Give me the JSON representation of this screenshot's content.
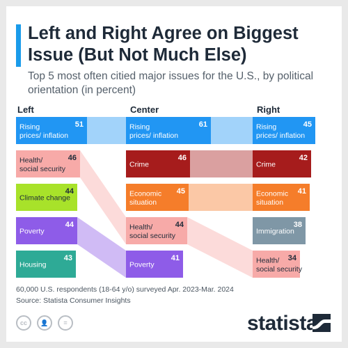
{
  "title": "Left and Right Agree on Biggest Issue (But Not Much Else)",
  "subtitle": "Top 5 most often citied major issues for the U.S., by political orientation (in percent)",
  "columns": [
    "Left",
    "Center",
    "Right"
  ],
  "chart_data": {
    "type": "bar",
    "title": "Left and Right Agree on Biggest Issue (But Not Much Else)",
    "subtitle": "Top 5 most often citied major issues for the U.S., by political orientation (in percent)",
    "xlim": [
      0,
      51
    ],
    "groups": [
      {
        "name": "Left",
        "items": [
          {
            "label": "Rising prices/ inflation",
            "value": 51
          },
          {
            "label": "Health/ social security",
            "value": 46
          },
          {
            "label": "Climate change",
            "value": 44
          },
          {
            "label": "Poverty",
            "value": 44
          },
          {
            "label": "Housing",
            "value": 43
          }
        ]
      },
      {
        "name": "Center",
        "items": [
          {
            "label": "Rising prices/ inflation",
            "value": 61
          },
          {
            "label": "Crime",
            "value": 46
          },
          {
            "label": "Economic situation",
            "value": 45
          },
          {
            "label": "Health/ social security",
            "value": 44
          },
          {
            "label": "Poverty",
            "value": 41
          }
        ]
      },
      {
        "name": "Right",
        "items": [
          {
            "label": "Rising prices/ inflation",
            "value": 45
          },
          {
            "label": "Crime",
            "value": 42
          },
          {
            "label": "Economic situation",
            "value": 41
          },
          {
            "label": "Immigration",
            "value": 38
          },
          {
            "label": "Health/ social security",
            "value": 34
          }
        ]
      }
    ],
    "issue_colors": {
      "Rising prices/ inflation": "#2196f3",
      "Health/ social security": "#f7aaa8",
      "Climate change": "#a8e22a",
      "Poverty": "#8e5ce8",
      "Housing": "#2eaa96",
      "Crime": "#a61c1c",
      "Economic situation": "#f57d2a",
      "Immigration": "#7f97a6"
    },
    "dark_text_issues": [
      "Health/ social security",
      "Climate change"
    ]
  },
  "footer": {
    "note": "60,000 U.S. respondents (18-64 y/o) surveyed Apr. 2023-Mar. 2024",
    "source": "Source: Statista Consumer Insights"
  },
  "brand": "statista",
  "license_icons": [
    "cc-icon",
    "attribution-icon",
    "no-derivatives-icon"
  ]
}
